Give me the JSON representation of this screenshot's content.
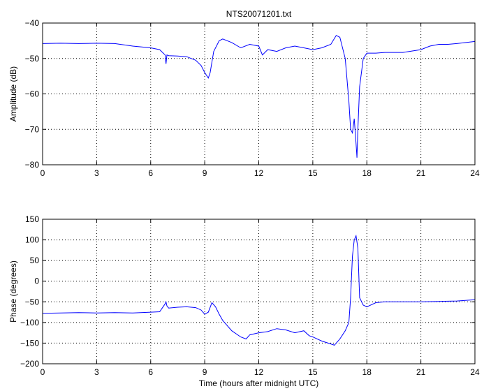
{
  "figure": {
    "background": "#ffffff"
  },
  "chart_data": [
    {
      "type": "line",
      "title": "NTS20071201.txt",
      "xlabel": "",
      "ylabel": "Amplitude (dB)",
      "xlim": [
        0,
        24
      ],
      "ylim": [
        -80,
        -40
      ],
      "xticks": [
        0,
        3,
        6,
        9,
        12,
        15,
        18,
        21,
        24
      ],
      "yticks": [
        -80,
        -70,
        -60,
        -50,
        -40
      ],
      "grid": true,
      "line_color": "#0000ff",
      "series": [
        {
          "x": [
            0,
            1,
            2,
            3,
            4,
            5,
            6,
            6.5,
            6.8,
            6.85,
            6.9,
            7.0,
            7.5,
            8.0,
            8.5,
            8.8,
            9.0,
            9.2,
            9.3,
            9.5,
            9.8,
            10.0,
            10.5,
            11.0,
            11.5,
            12.0,
            12.2,
            12.5,
            13.0,
            13.5,
            14.0,
            14.5,
            15.0,
            15.5,
            16.0,
            16.3,
            16.5,
            16.8,
            17.0,
            17.1,
            17.2,
            17.3,
            17.4,
            17.45,
            17.5,
            17.6,
            17.8,
            18.0,
            18.5,
            19.0,
            20.0,
            21.0,
            21.5,
            22.0,
            22.5,
            23.0,
            23.5,
            24.0
          ],
          "y": [
            -45.8,
            -45.7,
            -45.8,
            -45.7,
            -45.8,
            -46.5,
            -47,
            -47.5,
            -49,
            -51.5,
            -49,
            -49.2,
            -49.3,
            -49.5,
            -50.5,
            -52,
            -54,
            -55.5,
            -54,
            -48,
            -45,
            -44.5,
            -45.5,
            -47,
            -46,
            -46.5,
            -49,
            -47.5,
            -48,
            -47,
            -46.5,
            -47,
            -47.5,
            -47,
            -46,
            -43.5,
            -44,
            -50,
            -62,
            -70,
            -71,
            -67,
            -74,
            -78,
            -70,
            -58,
            -50,
            -48.5,
            -48.5,
            -48.3,
            -48.3,
            -47.5,
            -46.5,
            -46,
            -46,
            -45.8,
            -45.5,
            -45.2
          ]
        }
      ]
    },
    {
      "type": "line",
      "title": "",
      "xlabel": "Time (hours after midnight UTC)",
      "ylabel": "Phase (degrees)",
      "xlim": [
        0,
        24
      ],
      "ylim": [
        -200,
        150
      ],
      "xticks": [
        0,
        3,
        6,
        9,
        12,
        15,
        18,
        21,
        24
      ],
      "yticks": [
        -200,
        -150,
        -100,
        -50,
        0,
        50,
        100,
        150
      ],
      "grid": true,
      "line_color": "#0000ff",
      "series": [
        {
          "x": [
            0,
            1,
            2,
            3,
            4,
            5,
            6,
            6.5,
            6.8,
            6.85,
            6.9,
            7.0,
            7.5,
            8.0,
            8.5,
            8.8,
            9.0,
            9.2,
            9.4,
            9.6,
            9.8,
            10.0,
            10.5,
            11.0,
            11.3,
            11.5,
            12.0,
            12.5,
            13.0,
            13.5,
            14.0,
            14.5,
            14.8,
            15.0,
            15.5,
            16.0,
            16.2,
            16.5,
            16.8,
            17.0,
            17.1,
            17.2,
            17.3,
            17.4,
            17.5,
            17.6,
            17.8,
            18.0,
            18.5,
            19.0,
            20.0,
            21.0,
            22.0,
            23.0,
            24.0
          ],
          "y": [
            -78,
            -77,
            -76,
            -77,
            -76,
            -77,
            -75,
            -74,
            -55,
            -50,
            -60,
            -65,
            -63,
            -62,
            -64,
            -70,
            -80,
            -75,
            -52,
            -62,
            -80,
            -95,
            -120,
            -135,
            -140,
            -130,
            -125,
            -122,
            -115,
            -118,
            -125,
            -120,
            -132,
            -135,
            -145,
            -152,
            -155,
            -140,
            -120,
            -100,
            -40,
            60,
            100,
            110,
            80,
            -40,
            -58,
            -62,
            -52,
            -50,
            -50,
            -50,
            -49,
            -48,
            -45
          ]
        }
      ]
    }
  ]
}
